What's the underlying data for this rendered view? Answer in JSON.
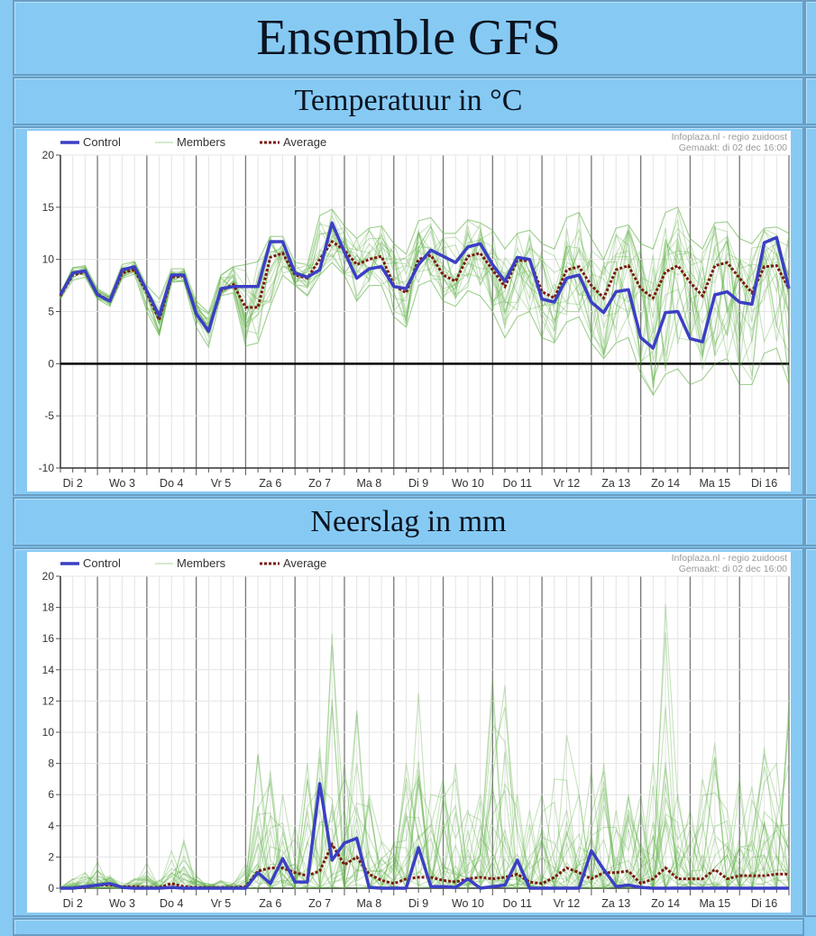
{
  "page": {
    "title": "Ensemble GFS",
    "temperature_heading": "Temperatuur in °C",
    "precipitation_heading": "Neerslag in mm"
  },
  "colors": {
    "background": "#86caf4",
    "control": "#3b3fc4",
    "members": "#5cb043",
    "average": "#7a1a10",
    "day_line": "#777777",
    "grid": "#e4e4e4"
  },
  "chart_data": [
    {
      "type": "line",
      "title": "Temperatuur in °C",
      "legend": [
        "Control",
        "Members",
        "Average"
      ],
      "legend_position": "top-left",
      "source": "Infoplaza.nl - regio zuidoost",
      "created": "Gemaakt: di 02 dec 16:00",
      "ylim": [
        -10,
        20
      ],
      "yticks": [
        "20",
        "15",
        "10",
        "5",
        "0",
        "-5",
        "-10"
      ],
      "grid": true,
      "x_labels": [
        "Di 2",
        "Wo 3",
        "Do 4",
        "Vr 5",
        "Za 6",
        "Zo 7",
        "Ma 8",
        "Di 9",
        "Wo 10",
        "Do 11",
        "Vr 12",
        "Za 13",
        "Zo 14",
        "Ma 15",
        "Di 16"
      ],
      "series": [
        {
          "name": "Control",
          "values": [
            6.6,
            8.7,
            8.9,
            6.6,
            6.0,
            9.0,
            9.3,
            7.0,
            4.6,
            8.5,
            8.5,
            4.8,
            3.1,
            7.2,
            7.4,
            7.4,
            7.4,
            11.7,
            11.7,
            8.7,
            8.3,
            9.0,
            13.5,
            10.7,
            8.2,
            9.1,
            9.3,
            7.4,
            7.2,
            9.5,
            10.9,
            10.3,
            9.7,
            11.2,
            11.5,
            9.5,
            7.9,
            10.2,
            10.0,
            6.2,
            5.9,
            8.2,
            8.5,
            5.9,
            4.9,
            6.9,
            7.1,
            2.5,
            1.5,
            4.9,
            5.0,
            2.4,
            2.1,
            6.6,
            6.9,
            5.9,
            5.7,
            11.6,
            12.1,
            7.2
          ]
        },
        {
          "name": "Average",
          "values": [
            6.5,
            8.5,
            8.8,
            6.7,
            6.0,
            8.7,
            9.0,
            6.8,
            4.2,
            8.3,
            8.4,
            4.8,
            3.2,
            7.0,
            7.6,
            5.4,
            5.4,
            10.2,
            10.6,
            8.5,
            8.2,
            10.0,
            11.7,
            10.9,
            9.5,
            10.0,
            10.3,
            7.5,
            6.8,
            10.0,
            10.4,
            8.5,
            7.9,
            10.3,
            10.6,
            9.0,
            7.4,
            9.9,
            9.9,
            6.9,
            6.3,
            9.0,
            9.3,
            7.5,
            6.3,
            9.0,
            9.4,
            7.2,
            6.3,
            8.8,
            9.4,
            7.8,
            6.5,
            9.4,
            9.7,
            8.2,
            6.8,
            9.3,
            9.4,
            7.2
          ]
        },
        {
          "name": "Members",
          "max": [
            6.8,
            9.2,
            9.4,
            7.2,
            6.5,
            9.5,
            9.8,
            7.5,
            6.2,
            9.1,
            9.1,
            6.0,
            4.9,
            8.5,
            9.3,
            9.5,
            9.8,
            12.2,
            12.2,
            9.7,
            9.5,
            14.2,
            14.8,
            13.2,
            12.0,
            13.0,
            13.2,
            11.5,
            10.5,
            13.7,
            14.0,
            12.5,
            12.5,
            13.8,
            13.5,
            12.8,
            11.0,
            12.5,
            12.8,
            11.5,
            11.0,
            14.0,
            14.5,
            12.0,
            10.0,
            13.0,
            13.3,
            11.5,
            11.0,
            14.5,
            15.0,
            12.0,
            11.0,
            13.5,
            13.6,
            12.0,
            11.5,
            13.0,
            13.1,
            12.5
          ],
          "min": [
            6.2,
            8.0,
            8.3,
            6.2,
            5.5,
            8.2,
            8.6,
            5.0,
            2.7,
            7.8,
            7.9,
            3.5,
            1.6,
            6.5,
            6.8,
            1.7,
            2.0,
            5.5,
            8.5,
            7.5,
            6.5,
            8.5,
            9.7,
            8.5,
            6.0,
            7.5,
            7.5,
            4.5,
            3.5,
            7.5,
            8.0,
            6.0,
            5.5,
            7.0,
            6.5,
            5.0,
            2.5,
            4.5,
            5.0,
            2.5,
            2.0,
            4.0,
            4.5,
            2.0,
            0.5,
            2.0,
            2.5,
            -1.0,
            -3.0,
            -1.0,
            -0.5,
            -2.0,
            -1.5,
            0.0,
            0.5,
            -2.0,
            -2.0,
            1.0,
            1.5,
            -2.0
          ]
        }
      ]
    },
    {
      "type": "line",
      "title": "Neerslag in mm",
      "legend": [
        "Control",
        "Members",
        "Average"
      ],
      "legend_position": "top-left",
      "source": "Infoplaza.nl - regio zuidoost",
      "created": "Gemaakt: di 02 dec 16:00",
      "ylim": [
        0,
        20
      ],
      "yticks": [
        "20",
        "18",
        "16",
        "14",
        "12",
        "10",
        "8",
        "6",
        "4",
        "2",
        "0"
      ],
      "grid": true,
      "x_labels": [
        "Di 2",
        "Wo 3",
        "Do 4",
        "Vr 5",
        "Za 6",
        "Zo 7",
        "Ma 8",
        "Di 9",
        "Wo 10",
        "Do 11",
        "Vr 12",
        "Za 13",
        "Zo 14",
        "Ma 15",
        "Di 16"
      ],
      "series": [
        {
          "name": "Control",
          "values": [
            0,
            0,
            0.1,
            0.2,
            0.3,
            0.05,
            0,
            0,
            0,
            0.05,
            0,
            0,
            0,
            0,
            0,
            0,
            1.0,
            0.3,
            1.9,
            0.4,
            0.4,
            6.7,
            1.8,
            2.9,
            3.2,
            0.05,
            0,
            0,
            0,
            2.6,
            0.1,
            0.1,
            0.05,
            0.6,
            0,
            0.1,
            0.2,
            1.8,
            0,
            0,
            0,
            0,
            0,
            2.4,
            1.2,
            0.1,
            0.2,
            0.05,
            0,
            0,
            0,
            0,
            0,
            0,
            0,
            0,
            0,
            0,
            0,
            0
          ]
        },
        {
          "name": "Average",
          "values": [
            0,
            0,
            0.05,
            0.2,
            0.2,
            0.1,
            0.1,
            0.05,
            0.05,
            0.3,
            0.1,
            0.05,
            0.05,
            0.05,
            0.05,
            0.1,
            1.1,
            1.3,
            1.3,
            1.0,
            0.8,
            1.1,
            2.8,
            1.5,
            2.0,
            0.9,
            0.5,
            0.3,
            0.6,
            0.7,
            0.7,
            0.5,
            0.4,
            0.6,
            0.7,
            0.6,
            0.7,
            0.9,
            0.4,
            0.3,
            0.7,
            1.3,
            1.0,
            0.6,
            1.0,
            1.0,
            1.1,
            0.3,
            0.6,
            1.3,
            0.6,
            0.6,
            0.6,
            1.2,
            0.6,
            0.8,
            0.8,
            0.8,
            0.9,
            0.9
          ]
        },
        {
          "name": "Members",
          "max": [
            0.1,
            0.6,
            1.0,
            1.7,
            0.8,
            0.3,
            0.6,
            1.6,
            0.5,
            2.4,
            3.1,
            0.8,
            0.3,
            0.5,
            0.3,
            1.5,
            8.6,
            7.5,
            6.0,
            4.0,
            8.0,
            9.0,
            16.3,
            8.0,
            11.4,
            6.0,
            3.0,
            3.0,
            8.0,
            12.5,
            6.0,
            7.0,
            8.0,
            5.0,
            6.0,
            13.5,
            13.0,
            6.0,
            5.0,
            6.0,
            7.0,
            9.8,
            6.0,
            7.5,
            8.0,
            5.0,
            6.0,
            6.0,
            8.0,
            18.2,
            6.0,
            5.0,
            7.0,
            9.3,
            5.0,
            7.0,
            6.5,
            9.0,
            8.0,
            12.0
          ],
          "min": [
            0,
            0,
            0,
            0,
            0,
            0,
            0,
            0,
            0,
            0,
            0,
            0,
            0,
            0,
            0,
            0,
            0,
            0,
            0,
            0,
            0,
            0,
            0,
            0,
            0,
            0,
            0,
            0,
            0,
            0,
            0,
            0,
            0,
            0,
            0,
            0,
            0,
            0,
            0,
            0,
            0,
            0,
            0,
            0,
            0,
            0,
            0,
            0,
            0,
            0,
            0,
            0,
            0,
            0,
            0,
            0,
            0,
            0,
            0,
            0
          ]
        }
      ]
    }
  ]
}
